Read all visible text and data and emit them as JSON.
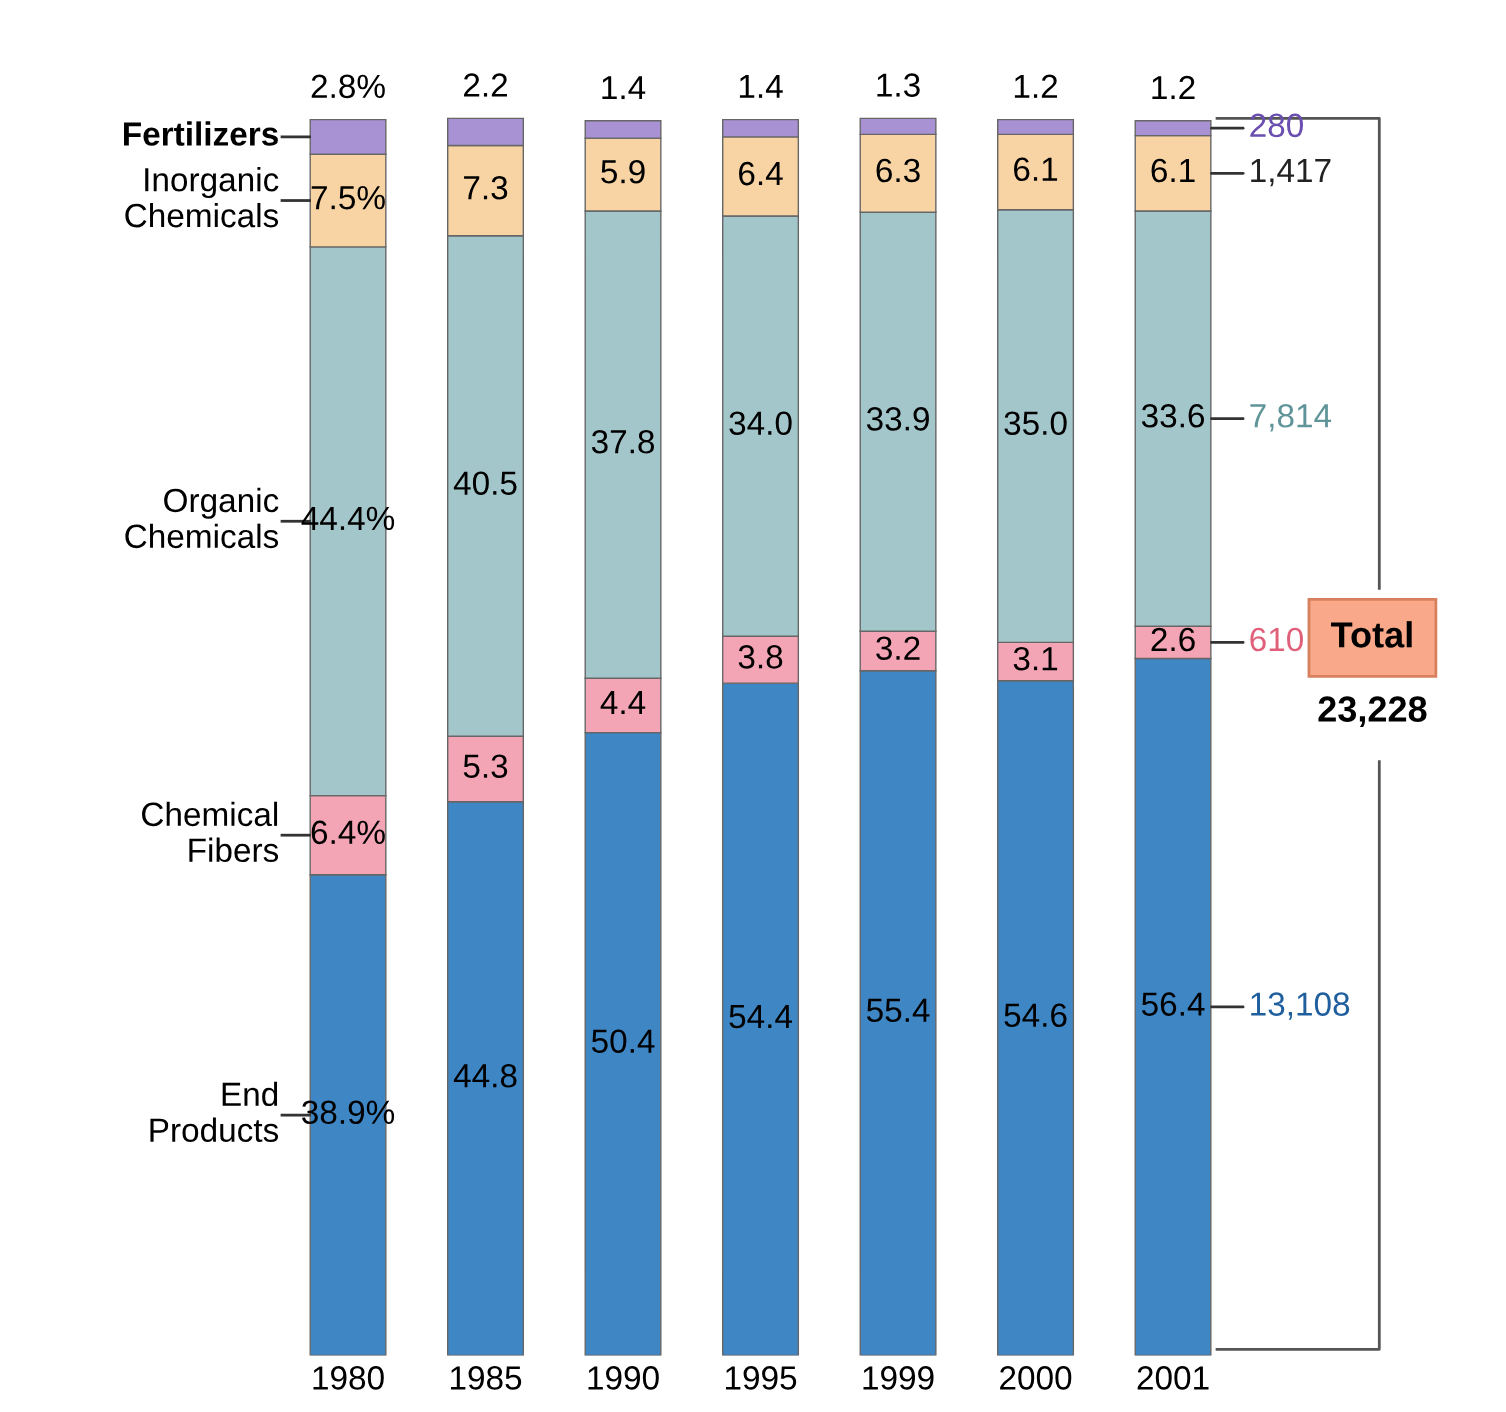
{
  "chart_data": {
    "type": "bar",
    "stacked": true,
    "categories": [
      "1980",
      "1985",
      "1990",
      "1995",
      "1999",
      "2000",
      "2001"
    ],
    "series": [
      {
        "name": "End\nProducts",
        "color": "#3f86c4",
        "values": [
          38.9,
          44.8,
          50.4,
          54.4,
          55.4,
          54.6,
          56.4
        ],
        "value_labels": [
          "38.9%",
          "44.8",
          "50.4",
          "54.4",
          "55.4",
          "54.6",
          "56.4"
        ]
      },
      {
        "name": "Chemical\nFibers",
        "color": "#f4a5b5",
        "values": [
          6.4,
          5.3,
          4.4,
          3.8,
          3.2,
          3.1,
          2.6
        ],
        "value_labels": [
          "6.4%",
          "5.3",
          "4.4",
          "3.8",
          "3.2",
          "3.1",
          "2.6"
        ]
      },
      {
        "name": "Organic\nChemicals",
        "color": "#a3c6cb",
        "values": [
          44.4,
          40.5,
          37.8,
          34.0,
          33.9,
          35.0,
          33.6
        ],
        "value_labels": [
          "44.4%",
          "40.5",
          "37.8",
          "34.0",
          "33.9",
          "35.0",
          "33.6"
        ]
      },
      {
        "name": "Inorganic\nChemicals",
        "color": "#f8d4a4",
        "values": [
          7.5,
          7.3,
          5.9,
          6.4,
          6.3,
          6.1,
          6.1
        ],
        "value_labels": [
          "7.5%",
          "7.3",
          "5.9",
          "6.4",
          "6.3",
          "6.1",
          "6.1"
        ]
      },
      {
        "name": "Fertilizers",
        "color": "#a892d4",
        "values": [
          2.8,
          2.2,
          1.4,
          1.4,
          1.3,
          1.2,
          1.2
        ],
        "value_labels": [
          "2.8%",
          "2.2",
          "1.4",
          "1.4",
          "1.3",
          "1.2",
          "1.2"
        ]
      }
    ],
    "annotations": [
      "13,108",
      "610",
      "7,814",
      "1,417",
      "280",
      "Total",
      "23,228"
    ]
  }
}
